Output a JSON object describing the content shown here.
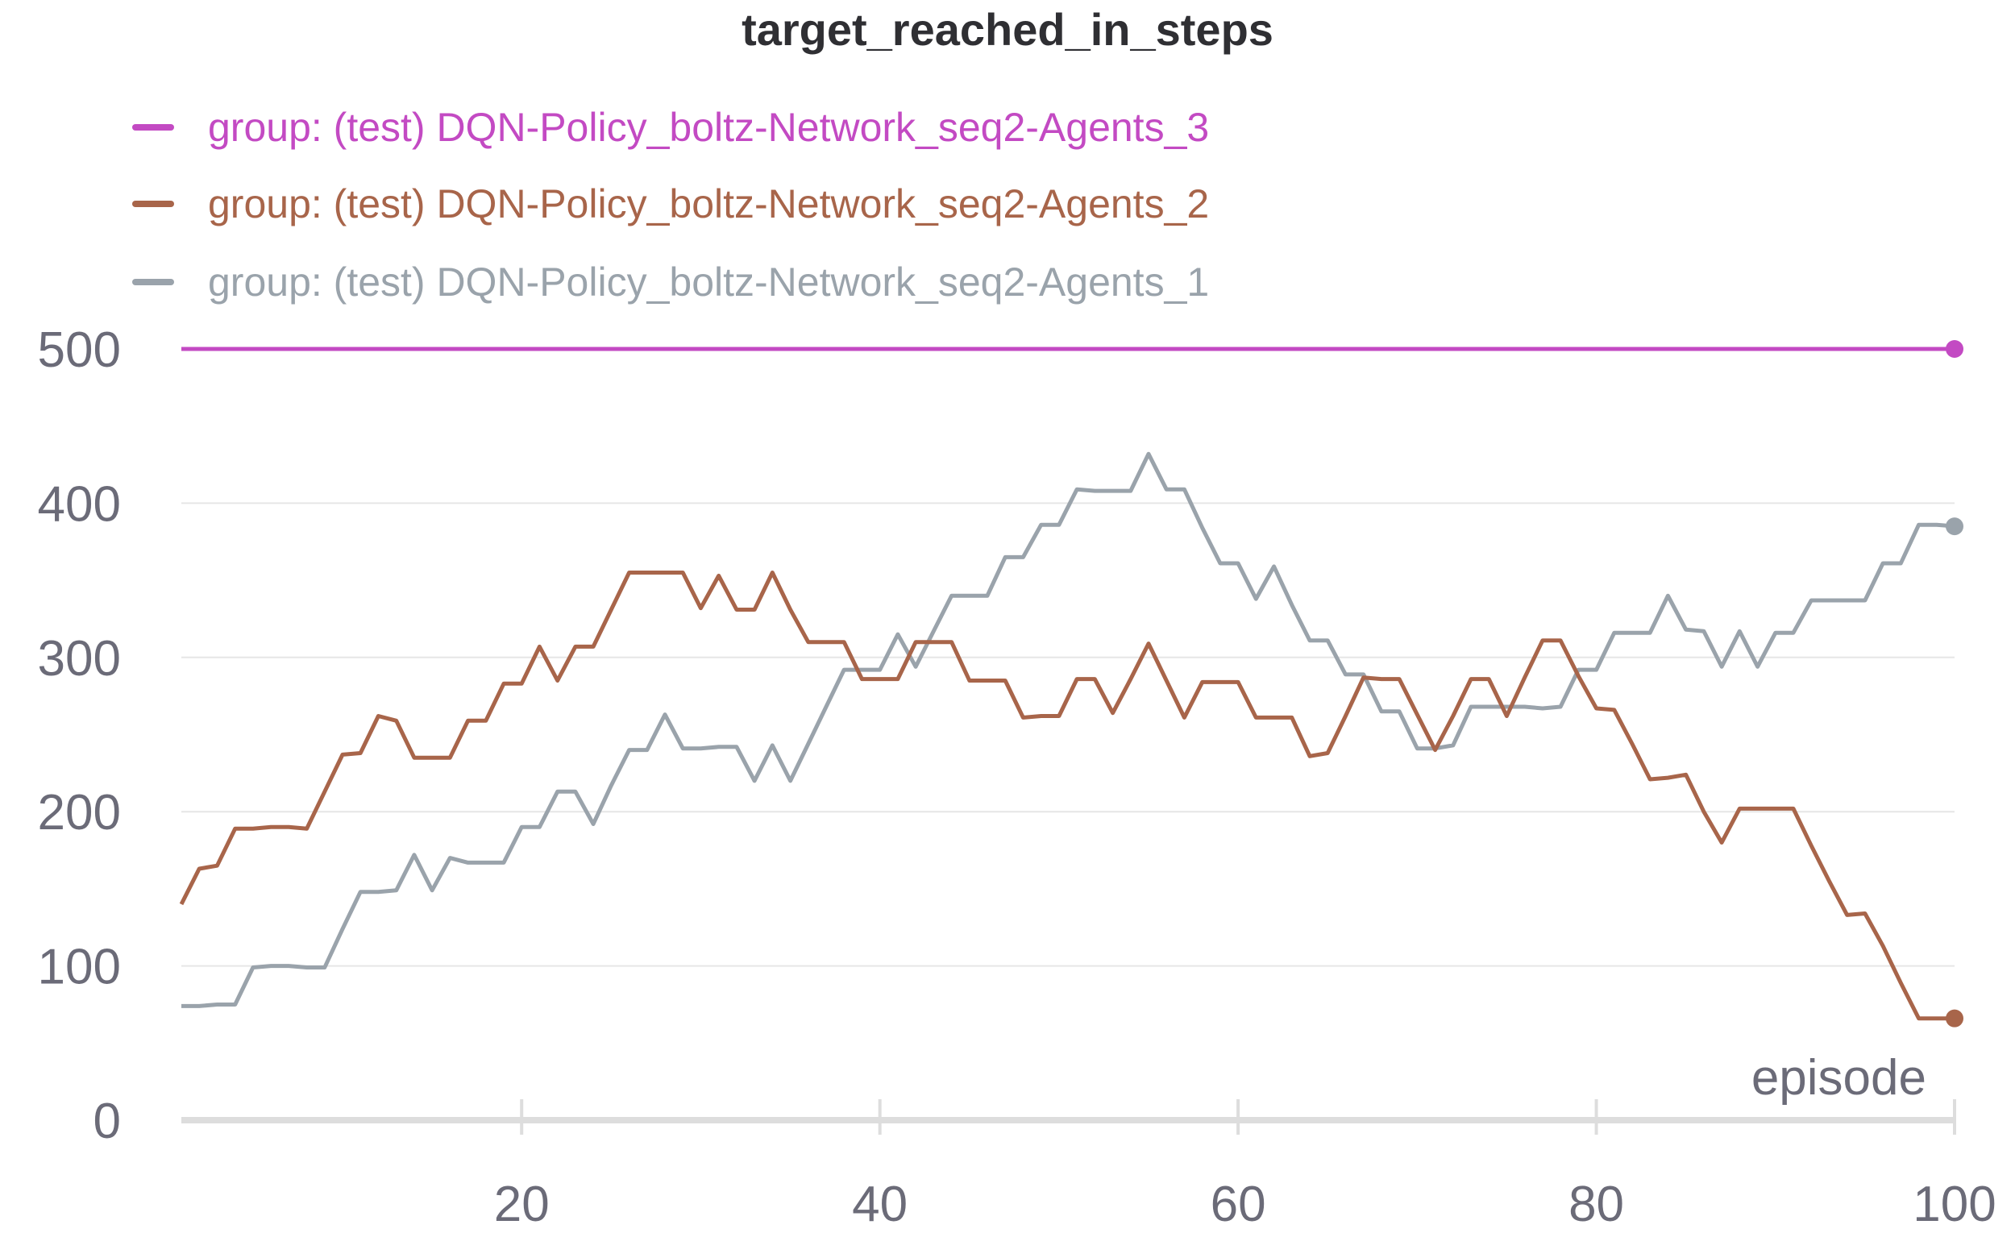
{
  "chart_data": {
    "type": "line",
    "title": "target_reached_in_steps",
    "xlabel": "episode",
    "ylabel": "",
    "xlim": [
      1,
      100
    ],
    "ylim": [
      0,
      500
    ],
    "x_ticks": [
      20,
      40,
      60,
      80,
      100
    ],
    "y_ticks": [
      0,
      100,
      200,
      300,
      400,
      500
    ],
    "grid": "horizontal",
    "legend_position": "top-left",
    "x": [
      1,
      2,
      3,
      4,
      5,
      6,
      7,
      8,
      9,
      10,
      11,
      12,
      13,
      14,
      15,
      16,
      17,
      18,
      19,
      20,
      21,
      22,
      23,
      24,
      25,
      26,
      27,
      28,
      29,
      30,
      31,
      32,
      33,
      34,
      35,
      36,
      37,
      38,
      39,
      40,
      41,
      42,
      43,
      44,
      45,
      46,
      47,
      48,
      49,
      50,
      51,
      52,
      53,
      54,
      55,
      56,
      57,
      58,
      59,
      60,
      61,
      62,
      63,
      64,
      65,
      66,
      67,
      68,
      69,
      70,
      71,
      72,
      73,
      74,
      75,
      76,
      77,
      78,
      79,
      80,
      81,
      82,
      83,
      84,
      85,
      86,
      87,
      88,
      89,
      90,
      91,
      92,
      93,
      94,
      95,
      96,
      97,
      98,
      99,
      100
    ],
    "series": [
      {
        "name": "group: (test) DQN-Policy_boltz-Network_seq2-Agents_3",
        "color": "#c34ac3",
        "values": [
          500,
          500,
          500,
          500,
          500,
          500,
          500,
          500,
          500,
          500,
          500,
          500,
          500,
          500,
          500,
          500,
          500,
          500,
          500,
          500,
          500,
          500,
          500,
          500,
          500,
          500,
          500,
          500,
          500,
          500,
          500,
          500,
          500,
          500,
          500,
          500,
          500,
          500,
          500,
          500,
          500,
          500,
          500,
          500,
          500,
          500,
          500,
          500,
          500,
          500,
          500,
          500,
          500,
          500,
          500,
          500,
          500,
          500,
          500,
          500,
          500,
          500,
          500,
          500,
          500,
          500,
          500,
          500,
          500,
          500,
          500,
          500,
          500,
          500,
          500,
          500,
          500,
          500,
          500,
          500,
          500,
          500,
          500,
          500,
          500,
          500,
          500,
          500,
          500,
          500,
          500,
          500,
          500,
          500,
          500,
          500,
          500,
          500,
          500,
          500
        ]
      },
      {
        "name": "group: (test) DQN-Policy_boltz-Network_seq2-Agents_2",
        "color": "#a8654a",
        "values": [
          140,
          163,
          165,
          189,
          189,
          190,
          190,
          189,
          213,
          237,
          238,
          262,
          259,
          235,
          235,
          235,
          259,
          259,
          283,
          283,
          307,
          285,
          307,
          307,
          331,
          355,
          355,
          355,
          355,
          332,
          353,
          331,
          331,
          355,
          331,
          310,
          310,
          310,
          286,
          286,
          286,
          310,
          310,
          310,
          285,
          285,
          285,
          261,
          262,
          262,
          286,
          286,
          264,
          286,
          309,
          285,
          261,
          284,
          284,
          284,
          261,
          261,
          261,
          236,
          238,
          262,
          287,
          286,
          286,
          263,
          240,
          262,
          286,
          286,
          262,
          287,
          311,
          311,
          288,
          267,
          266,
          244,
          221,
          222,
          224,
          200,
          180,
          202,
          202,
          202,
          202,
          178,
          155,
          133,
          134,
          113,
          89,
          66,
          66,
          66
        ]
      },
      {
        "name": "group: (test) DQN-Policy_boltz-Network_seq2-Agents_1",
        "color": "#9aa3ab",
        "values": [
          74,
          74,
          75,
          75,
          99,
          100,
          100,
          99,
          99,
          124,
          148,
          148,
          149,
          172,
          149,
          170,
          167,
          167,
          167,
          190,
          190,
          213,
          213,
          192,
          217,
          240,
          240,
          263,
          241,
          241,
          242,
          242,
          220,
          243,
          220,
          244,
          268,
          292,
          292,
          292,
          315,
          294,
          317,
          340,
          340,
          340,
          365,
          365,
          386,
          386,
          409,
          408,
          408,
          408,
          432,
          409,
          409,
          384,
          361,
          361,
          338,
          359,
          334,
          311,
          311,
          289,
          289,
          265,
          265,
          241,
          241,
          243,
          268,
          268,
          268,
          268,
          267,
          268,
          292,
          292,
          316,
          316,
          316,
          340,
          318,
          317,
          294,
          317,
          294,
          316,
          316,
          337,
          337,
          337,
          337,
          361,
          361,
          386,
          386,
          385
        ]
      }
    ]
  }
}
